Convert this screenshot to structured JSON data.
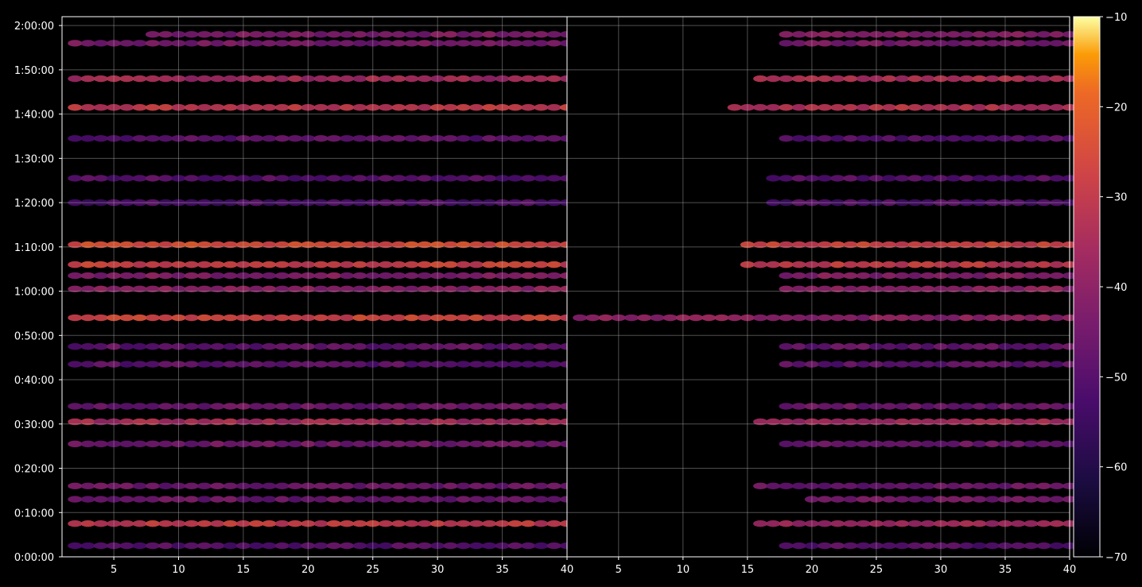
{
  "colors": {
    "background": "#000000",
    "axis": "#ffffff",
    "grid": "#b0b0b0",
    "colormap": "inferno"
  },
  "chart_data": [
    {
      "type": "heatmap",
      "panel": "left",
      "title": "",
      "xlabel": "",
      "ylabel": "",
      "xlim": [
        1,
        40
      ],
      "ylim": [
        0,
        7320
      ],
      "grid": true,
      "x_ticks": [
        "5",
        "10",
        "15",
        "20",
        "25",
        "30",
        "35",
        "40"
      ],
      "x_tick_values": [
        5,
        10,
        15,
        20,
        25,
        30,
        35,
        40
      ],
      "y_ticks": [
        "0:00:00",
        "0:10:00",
        "0:20:00",
        "0:30:00",
        "0:40:00",
        "0:50:00",
        "1:00:00",
        "1:10:00",
        "1:20:00",
        "1:30:00",
        "1:40:00",
        "1:50:00",
        "2:00:00"
      ],
      "y_tick_values": [
        0,
        600,
        1200,
        1800,
        2400,
        3000,
        3600,
        4200,
        4800,
        5400,
        6000,
        6600,
        7200
      ],
      "bands": [
        {
          "t": 7080,
          "x": [
            8,
            40
          ],
          "level": -43
        },
        {
          "t": 6960,
          "x": [
            2,
            40
          ],
          "level": -44
        },
        {
          "t": 6480,
          "x": [
            2,
            40
          ],
          "level": -36
        },
        {
          "t": 6090,
          "x": [
            2,
            40
          ],
          "level": -30
        },
        {
          "t": 5670,
          "x": [
            2,
            40
          ],
          "level": -49
        },
        {
          "t": 5130,
          "x": [
            2,
            40
          ],
          "level": -50
        },
        {
          "t": 4800,
          "x": [
            2,
            40
          ],
          "level": -52
        },
        {
          "t": 4230,
          "x": [
            2,
            40
          ],
          "level": -25
        },
        {
          "t": 3960,
          "x": [
            2,
            40
          ],
          "level": -28
        },
        {
          "t": 3810,
          "x": [
            2,
            40
          ],
          "level": -42
        },
        {
          "t": 3630,
          "x": [
            2,
            40
          ],
          "level": -40
        },
        {
          "t": 3240,
          "x": [
            2,
            40
          ],
          "level": -27
        },
        {
          "t": 2850,
          "x": [
            2,
            40
          ],
          "level": -48
        },
        {
          "t": 2610,
          "x": [
            2,
            40
          ],
          "level": -49
        },
        {
          "t": 2040,
          "x": [
            2,
            40
          ],
          "level": -46
        },
        {
          "t": 1830,
          "x": [
            2,
            40
          ],
          "level": -35
        },
        {
          "t": 1530,
          "x": [
            2,
            40
          ],
          "level": -45
        },
        {
          "t": 960,
          "x": [
            2,
            40
          ],
          "level": -46
        },
        {
          "t": 780,
          "x": [
            2,
            40
          ],
          "level": -46
        },
        {
          "t": 450,
          "x": [
            2,
            40
          ],
          "level": -30
        },
        {
          "t": 150,
          "x": [
            2,
            40
          ],
          "level": -50
        }
      ]
    },
    {
      "type": "heatmap",
      "panel": "right",
      "title": "",
      "xlabel": "",
      "ylabel": "",
      "xlim": [
        1,
        40
      ],
      "ylim": [
        0,
        7320
      ],
      "grid": true,
      "x_ticks": [
        "5",
        "10",
        "15",
        "20",
        "25",
        "30",
        "35",
        "40"
      ],
      "x_tick_values": [
        5,
        10,
        15,
        20,
        25,
        30,
        35,
        40
      ],
      "colorbar": {
        "label": "",
        "range": [
          -70,
          -10
        ],
        "ticks": [
          "−10",
          "−20",
          "−30",
          "−40",
          "−50",
          "−60",
          "−70"
        ],
        "tick_values": [
          -10,
          -20,
          -30,
          -40,
          -50,
          -60,
          -70
        ]
      },
      "bands": [
        {
          "t": 7080,
          "x": [
            18,
            40
          ],
          "level": -42
        },
        {
          "t": 6960,
          "x": [
            18,
            40
          ],
          "level": -44
        },
        {
          "t": 6480,
          "x": [
            16,
            40
          ],
          "level": -34
        },
        {
          "t": 6090,
          "x": [
            14,
            40
          ],
          "level": -32
        },
        {
          "t": 5670,
          "x": [
            18,
            40
          ],
          "level": -50
        },
        {
          "t": 5130,
          "x": [
            17,
            40
          ],
          "level": -50
        },
        {
          "t": 4800,
          "x": [
            17,
            40
          ],
          "level": -52
        },
        {
          "t": 4230,
          "x": [
            15,
            40
          ],
          "level": -27
        },
        {
          "t": 3960,
          "x": [
            15,
            40
          ],
          "level": -30
        },
        {
          "t": 3810,
          "x": [
            18,
            40
          ],
          "level": -42
        },
        {
          "t": 3630,
          "x": [
            18,
            40
          ],
          "level": -40
        },
        {
          "t": 3240,
          "x": [
            2,
            40
          ],
          "level": -40
        },
        {
          "t": 2850,
          "x": [
            18,
            40
          ],
          "level": -47
        },
        {
          "t": 2610,
          "x": [
            18,
            40
          ],
          "level": -49
        },
        {
          "t": 2040,
          "x": [
            18,
            40
          ],
          "level": -46
        },
        {
          "t": 1830,
          "x": [
            16,
            40
          ],
          "level": -36
        },
        {
          "t": 1530,
          "x": [
            18,
            40
          ],
          "level": -46
        },
        {
          "t": 960,
          "x": [
            16,
            40
          ],
          "level": -46
        },
        {
          "t": 780,
          "x": [
            20,
            40
          ],
          "level": -45
        },
        {
          "t": 450,
          "x": [
            16,
            40
          ],
          "level": -36
        },
        {
          "t": 150,
          "x": [
            18,
            40
          ],
          "level": -50
        }
      ]
    }
  ]
}
